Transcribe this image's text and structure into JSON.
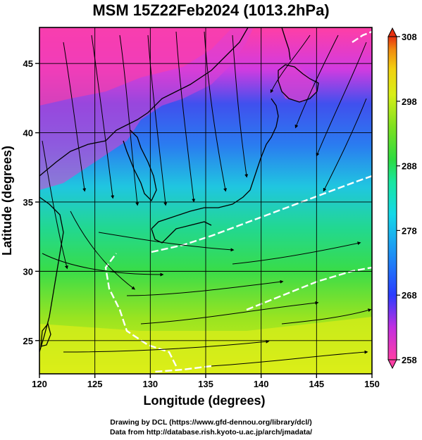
{
  "title": "MSM 15Z22Feb2024 (1013.2hPa)",
  "map": {
    "xlabel": "Longitude (degrees)",
    "ylabel": "Latitude  (degrees)",
    "lon_range": [
      120,
      150
    ],
    "lat_range": [
      22.6,
      47.6
    ],
    "lon_ticks": [
      120,
      125,
      130,
      135,
      140,
      145,
      150
    ],
    "lat_ticks": [
      25,
      30,
      35,
      40,
      45
    ],
    "grid": true
  },
  "colorbar": {
    "ticks": [
      258,
      268,
      278,
      288,
      298,
      308
    ],
    "colors": [
      "#ff3ea5",
      "#c12ee0",
      "#7a30ff",
      "#2a3cff",
      "#1d8cf5",
      "#14d8e8",
      "#18e6a0",
      "#2ddb40",
      "#7de020",
      "#d8ee18",
      "#f2d010",
      "#f08a10",
      "#e83010"
    ]
  },
  "credits": {
    "line1": "Drawing by DCL (https://www.gfd-dennou.org/library/dcl/)",
    "line2": "Data from http://database.rish.kyoto-u.ac.jp/arch/jmadata/"
  }
}
